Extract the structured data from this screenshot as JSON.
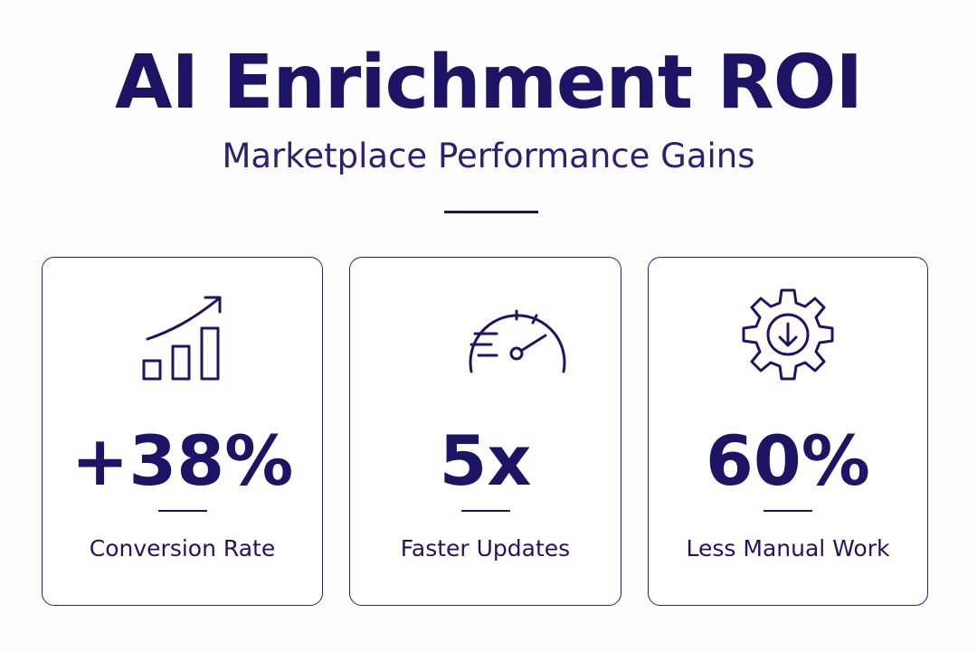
{
  "header": {
    "title": "AI Enrichment ROI",
    "subtitle": "Marketplace Performance Gains"
  },
  "cards": [
    {
      "icon": "growth-chart-icon",
      "value": "+38%",
      "label": "Conversion Rate"
    },
    {
      "icon": "speedometer-icon",
      "value": "5x",
      "label": "Faster Updates"
    },
    {
      "icon": "gear-download-icon",
      "value": "60%",
      "label": "Less Manual Work"
    }
  ],
  "colors": {
    "primary": "#1e1466",
    "background": "#fdfdfe",
    "card_border": "#2a2170"
  }
}
